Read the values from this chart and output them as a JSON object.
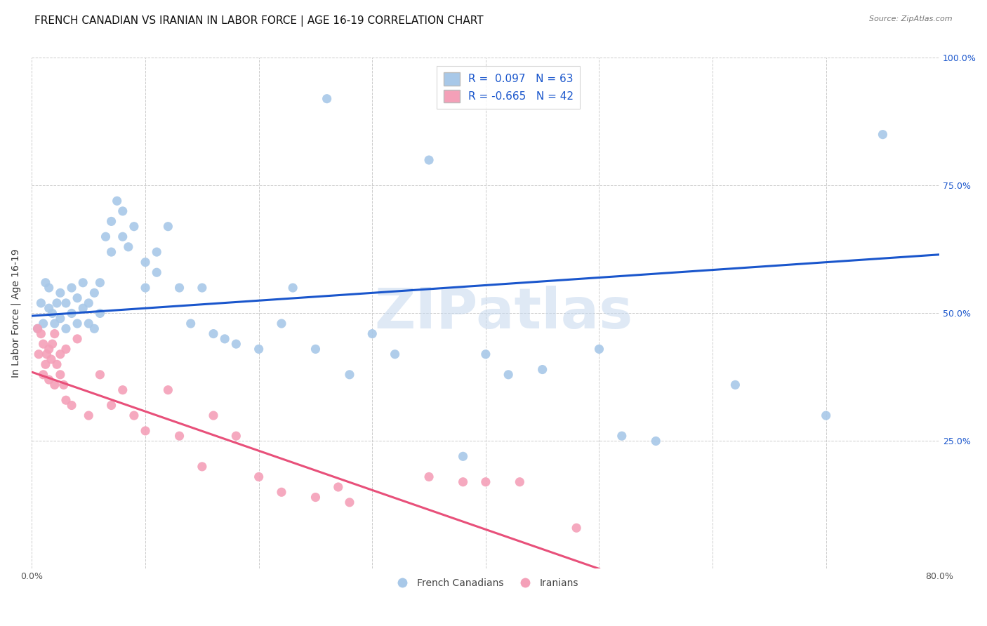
{
  "title": "FRENCH CANADIAN VS IRANIAN IN LABOR FORCE | AGE 16-19 CORRELATION CHART",
  "source": "Source: ZipAtlas.com",
  "ylabel": "In Labor Force | Age 16-19",
  "xlim": [
    0.0,
    0.8
  ],
  "ylim": [
    0.0,
    1.0
  ],
  "xtick_positions": [
    0.0,
    0.1,
    0.2,
    0.3,
    0.4,
    0.5,
    0.6,
    0.7,
    0.8
  ],
  "xtick_labels": [
    "0.0%",
    "",
    "",
    "",
    "",
    "",
    "",
    "",
    "80.0%"
  ],
  "ytick_positions": [
    0.0,
    0.25,
    0.5,
    0.75,
    1.0
  ],
  "ytick_labels_right": [
    "",
    "25.0%",
    "50.0%",
    "75.0%",
    "100.0%"
  ],
  "blue_r": "0.097",
  "blue_n": "63",
  "pink_r": "-0.665",
  "pink_n": "42",
  "blue_color": "#a8c8e8",
  "pink_color": "#f4a0b8",
  "blue_line_color": "#1a56cc",
  "pink_line_color": "#e8507a",
  "blue_line_x0": 0.0,
  "blue_line_y0": 0.495,
  "blue_line_x1": 0.8,
  "blue_line_y1": 0.615,
  "pink_line_x0": 0.0,
  "pink_line_y0": 0.385,
  "pink_line_x1": 0.5,
  "pink_line_y1": 0.0,
  "watermark_text": "ZIPatlas",
  "blue_scatter_x": [
    0.005,
    0.008,
    0.01,
    0.012,
    0.015,
    0.015,
    0.018,
    0.02,
    0.022,
    0.025,
    0.025,
    0.03,
    0.03,
    0.035,
    0.035,
    0.04,
    0.04,
    0.045,
    0.045,
    0.05,
    0.05,
    0.055,
    0.055,
    0.06,
    0.06,
    0.065,
    0.07,
    0.07,
    0.075,
    0.08,
    0.08,
    0.085,
    0.09,
    0.1,
    0.1,
    0.11,
    0.11,
    0.12,
    0.13,
    0.14,
    0.15,
    0.16,
    0.17,
    0.18,
    0.2,
    0.22,
    0.23,
    0.25,
    0.26,
    0.28,
    0.3,
    0.32,
    0.35,
    0.38,
    0.4,
    0.42,
    0.45,
    0.5,
    0.52,
    0.55,
    0.62,
    0.7,
    0.75
  ],
  "blue_scatter_y": [
    0.47,
    0.52,
    0.48,
    0.56,
    0.51,
    0.55,
    0.5,
    0.48,
    0.52,
    0.49,
    0.54,
    0.47,
    0.52,
    0.5,
    0.55,
    0.48,
    0.53,
    0.51,
    0.56,
    0.48,
    0.52,
    0.47,
    0.54,
    0.5,
    0.56,
    0.65,
    0.62,
    0.68,
    0.72,
    0.65,
    0.7,
    0.63,
    0.67,
    0.55,
    0.6,
    0.58,
    0.62,
    0.67,
    0.55,
    0.48,
    0.55,
    0.46,
    0.45,
    0.44,
    0.43,
    0.48,
    0.55,
    0.43,
    0.92,
    0.38,
    0.46,
    0.42,
    0.8,
    0.22,
    0.42,
    0.38,
    0.39,
    0.43,
    0.26,
    0.25,
    0.36,
    0.3,
    0.85
  ],
  "pink_scatter_x": [
    0.005,
    0.006,
    0.008,
    0.01,
    0.01,
    0.012,
    0.013,
    0.015,
    0.015,
    0.017,
    0.018,
    0.02,
    0.02,
    0.022,
    0.025,
    0.025,
    0.028,
    0.03,
    0.03,
    0.035,
    0.04,
    0.05,
    0.06,
    0.07,
    0.08,
    0.09,
    0.1,
    0.12,
    0.13,
    0.15,
    0.16,
    0.18,
    0.2,
    0.22,
    0.25,
    0.27,
    0.28,
    0.35,
    0.38,
    0.4,
    0.43,
    0.48
  ],
  "pink_scatter_y": [
    0.47,
    0.42,
    0.46,
    0.38,
    0.44,
    0.4,
    0.42,
    0.43,
    0.37,
    0.41,
    0.44,
    0.46,
    0.36,
    0.4,
    0.38,
    0.42,
    0.36,
    0.43,
    0.33,
    0.32,
    0.45,
    0.3,
    0.38,
    0.32,
    0.35,
    0.3,
    0.27,
    0.35,
    0.26,
    0.2,
    0.3,
    0.26,
    0.18,
    0.15,
    0.14,
    0.16,
    0.13,
    0.18,
    0.17,
    0.17,
    0.17,
    0.08
  ],
  "grid_color": "#cccccc",
  "bg_color": "#ffffff",
  "title_fontsize": 11,
  "label_fontsize": 10,
  "tick_fontsize": 9,
  "legend_fontsize": 11,
  "marker_size": 90
}
